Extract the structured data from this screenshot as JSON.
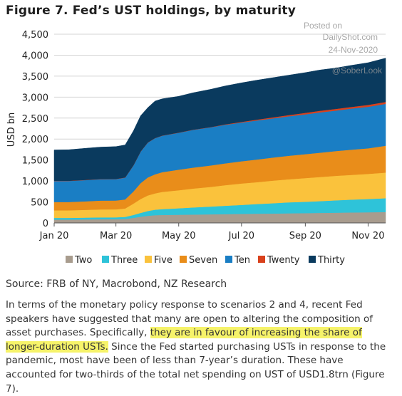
{
  "title": "Figure 7. Fed’s UST holdings, by maturity",
  "watermark": {
    "line1": "Posted on",
    "line2": "DailyShot.com",
    "line3": "24-Nov-2020",
    "handle": "@SoberLook"
  },
  "chart_data": {
    "type": "area",
    "stacked": true,
    "ylabel": "USD bn",
    "xlabel": "",
    "ylim": [
      0,
      4500
    ],
    "yticks": [
      0,
      500,
      1000,
      1500,
      2000,
      2500,
      3000,
      3500,
      4000,
      4500
    ],
    "ytick_labels": [
      "0",
      "500",
      "1,000",
      "1,500",
      "2,000",
      "2,500",
      "3,000",
      "3,500",
      "4,000",
      "4,500"
    ],
    "xticks": [
      "Jan 20",
      "Mar 20",
      "May 20",
      "Jul 20",
      "Sep 20",
      "Nov 20"
    ],
    "grid": "horizontal",
    "legend_position": "bottom",
    "x": [
      "2020-01-01",
      "2020-01-15",
      "2020-02-01",
      "2020-02-15",
      "2020-03-01",
      "2020-03-10",
      "2020-03-18",
      "2020-03-25",
      "2020-04-01",
      "2020-04-08",
      "2020-04-15",
      "2020-05-01",
      "2020-05-15",
      "2020-06-01",
      "2020-06-15",
      "2020-07-01",
      "2020-07-15",
      "2020-08-01",
      "2020-08-15",
      "2020-09-01",
      "2020-09-15",
      "2020-10-01",
      "2020-10-15",
      "2020-11-01",
      "2020-11-18"
    ],
    "series": [
      {
        "name": "Two",
        "color": "#a89c8e",
        "values": [
          80,
          80,
          85,
          88,
          90,
          95,
          120,
          150,
          170,
          185,
          190,
          195,
          200,
          205,
          210,
          215,
          220,
          225,
          230,
          235,
          240,
          245,
          250,
          255,
          260
        ]
      },
      {
        "name": "Three",
        "color": "#2ec3d9",
        "values": [
          40,
          40,
          42,
          45,
          45,
          50,
          70,
          90,
          115,
          130,
          140,
          155,
          170,
          185,
          200,
          215,
          230,
          245,
          260,
          270,
          280,
          295,
          305,
          315,
          330
        ]
      },
      {
        "name": "Five",
        "color": "#fac23c",
        "values": [
          180,
          180,
          185,
          190,
          190,
          200,
          270,
          330,
          370,
          390,
          410,
          430,
          450,
          470,
          490,
          510,
          520,
          540,
          550,
          565,
          575,
          585,
          590,
          600,
          610
        ]
      },
      {
        "name": "Seven",
        "color": "#e98d1a",
        "values": [
          200,
          200,
          205,
          210,
          210,
          215,
          290,
          380,
          430,
          455,
          470,
          490,
          500,
          510,
          520,
          530,
          540,
          550,
          560,
          570,
          580,
          590,
          600,
          610,
          640
        ]
      },
      {
        "name": "Ten",
        "color": "#1a7ec4",
        "values": [
          500,
          500,
          505,
          510,
          510,
          520,
          620,
          750,
          830,
          860,
          870,
          880,
          900,
          910,
          920,
          925,
          930,
          935,
          940,
          950,
          960,
          965,
          980,
          990,
          1000
        ]
      },
      {
        "name": "Twenty",
        "color": "#d9411c",
        "values": [
          5,
          5,
          5,
          5,
          5,
          5,
          5,
          5,
          5,
          5,
          5,
          5,
          5,
          5,
          10,
          15,
          20,
          25,
          30,
          35,
          40,
          40,
          40,
          45,
          45
        ]
      },
      {
        "name": "Thirty",
        "color": "#0a3a5e",
        "values": [
          735,
          740,
          755,
          760,
          770,
          775,
          820,
          850,
          830,
          880,
          875,
          865,
          880,
          900,
          915,
          930,
          940,
          945,
          950,
          960,
          970,
          975,
          990,
          1005,
          1045
        ]
      }
    ]
  },
  "source": "Source: FRB of NY, Macrobond, NZ Research",
  "body": {
    "part1": "In terms of the monetary policy response to scenarios 2 and 4, recent Fed speakers have suggested that many are open to altering the composition of asset purchases. Specifically, ",
    "highlight": "they are in favour of increasing the share of longer-duration USTs.",
    "part2": " Since the Fed started purchasing USTs in response to the pandemic, most have been of less than 7-year’s duration. These have accounted for two-thirds of the total net spending on UST of USD1.8trn (Figure 7)."
  }
}
